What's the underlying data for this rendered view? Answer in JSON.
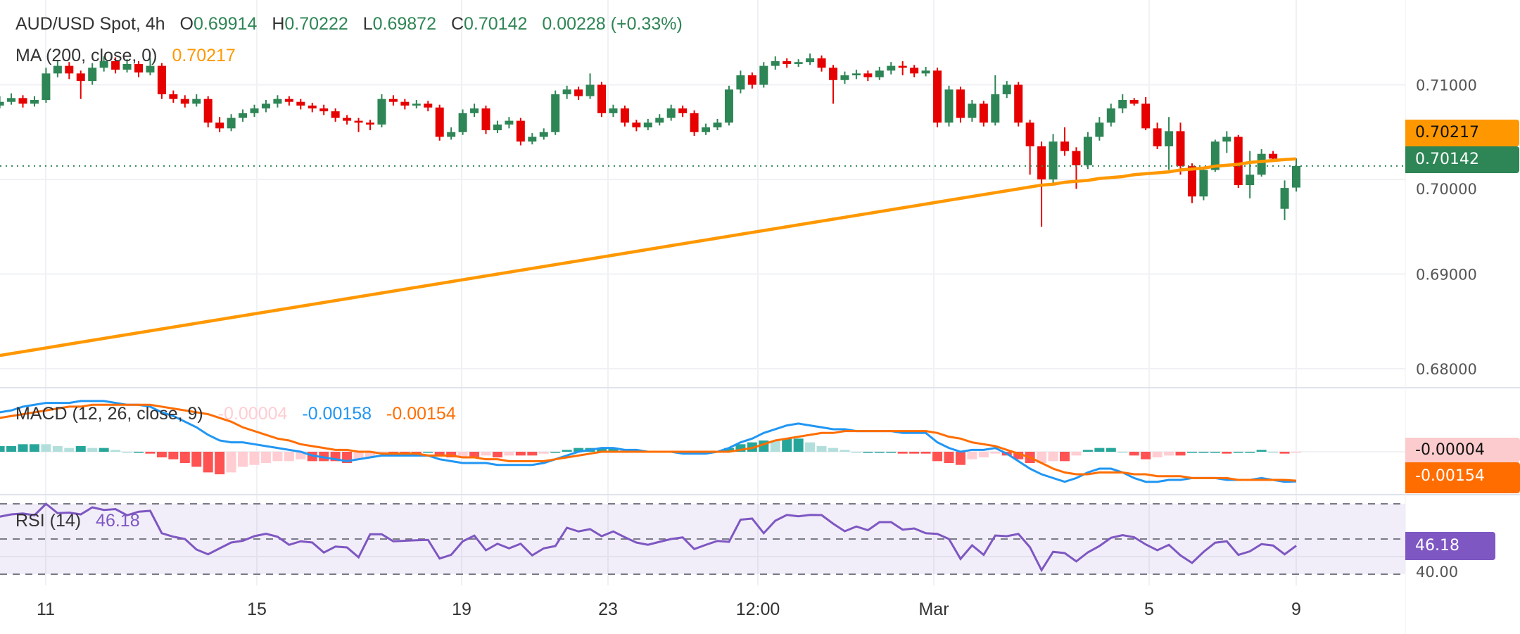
{
  "header": {
    "symbol": "AUD/USD Spot, 4h",
    "o_label": "O",
    "o_value": "0.69914",
    "h_label": "H",
    "h_value": "0.70222",
    "l_label": "L",
    "l_value": "0.69872",
    "c_label": "C",
    "c_value": "0.70142",
    "change": "0.00228 (+0.33%)",
    "ma_label": "MA (200, close, 0)",
    "ma_value": "0.70217"
  },
  "macd_legend": {
    "label": "MACD (12, 26, close, 9)",
    "hist_value": "-0.00004",
    "macd_value": "-0.00158",
    "signal_value": "-0.00154"
  },
  "rsi_legend": {
    "label": "RSI (14)",
    "value": "46.18"
  },
  "badges": {
    "ma": "0.70217",
    "last": "0.70142",
    "hist": "-0.00004",
    "signal": "-0.00154",
    "rsi": "46.18",
    "rsi_hidden_tick": "40.00"
  },
  "colors": {
    "up": "#2e8555",
    "down": "#e60000",
    "ma": "#ff9800",
    "macd": "#2196f3",
    "signal": "#ff6d00",
    "rsi": "#7e57c2",
    "hist_up_strong": "#26a69a",
    "hist_up_weak": "#b2dfdb",
    "hist_down_strong": "#ff5252",
    "hist_down_weak": "#ffcdd2"
  },
  "chart_data": [
    {
      "type": "candlestick",
      "title": "AUD/USD Spot, 4h",
      "price_ticks": [
        "0.68000",
        "0.69000",
        "0.70000",
        "0.71000"
      ],
      "ylim": [
        0.678,
        0.714
      ],
      "time_ticks": [
        "11",
        "15",
        "19",
        "23",
        "12:00",
        "Mar",
        "5",
        "9"
      ],
      "grid": true,
      "last_price": 0.70142,
      "candles": [
        [
          0.7078,
          0.7088,
          0.7075,
          0.7082
        ],
        [
          0.7082,
          0.7091,
          0.7079,
          0.7086
        ],
        [
          0.7086,
          0.7089,
          0.7076,
          0.708
        ],
        [
          0.708,
          0.7088,
          0.7077,
          0.7084
        ],
        [
          0.7084,
          0.7118,
          0.7081,
          0.7112
        ],
        [
          0.7112,
          0.7126,
          0.7108,
          0.712
        ],
        [
          0.712,
          0.7124,
          0.7106,
          0.7112
        ],
        [
          0.7112,
          0.7115,
          0.7085,
          0.7104
        ],
        [
          0.7104,
          0.7123,
          0.71,
          0.7118
        ],
        [
          0.7118,
          0.713,
          0.7114,
          0.7125
        ],
        [
          0.7125,
          0.7129,
          0.7112,
          0.7116
        ],
        [
          0.7116,
          0.7127,
          0.7113,
          0.7122
        ],
        [
          0.7122,
          0.7125,
          0.7108,
          0.7113
        ],
        [
          0.7113,
          0.7128,
          0.711,
          0.712
        ],
        [
          0.712,
          0.7123,
          0.7085,
          0.709
        ],
        [
          0.709,
          0.7094,
          0.7081,
          0.7085
        ],
        [
          0.7085,
          0.7089,
          0.7076,
          0.708
        ],
        [
          0.708,
          0.709,
          0.7077,
          0.7085
        ],
        [
          0.7085,
          0.7088,
          0.7055,
          0.706
        ],
        [
          0.706,
          0.7066,
          0.705,
          0.7054
        ],
        [
          0.7054,
          0.7069,
          0.7051,
          0.7065
        ],
        [
          0.7065,
          0.7074,
          0.7061,
          0.707
        ],
        [
          0.707,
          0.7079,
          0.7066,
          0.7075
        ],
        [
          0.7075,
          0.7084,
          0.7071,
          0.708
        ],
        [
          0.708,
          0.7089,
          0.7076,
          0.7085
        ],
        [
          0.7085,
          0.7088,
          0.7078,
          0.7082
        ],
        [
          0.7082,
          0.7085,
          0.7074,
          0.7078
        ],
        [
          0.7078,
          0.7081,
          0.7071,
          0.7075
        ],
        [
          0.7075,
          0.7079,
          0.7068,
          0.7072
        ],
        [
          0.7072,
          0.7075,
          0.7061,
          0.7065
        ],
        [
          0.7065,
          0.7068,
          0.7058,
          0.7062
        ],
        [
          0.7062,
          0.7065,
          0.705,
          0.706
        ],
        [
          0.706,
          0.7063,
          0.7052,
          0.7058
        ],
        [
          0.7058,
          0.709,
          0.7055,
          0.7085
        ],
        [
          0.7085,
          0.7089,
          0.7078,
          0.7082
        ],
        [
          0.7082,
          0.7085,
          0.7074,
          0.7078
        ],
        [
          0.7078,
          0.7084,
          0.7075,
          0.708
        ],
        [
          0.708,
          0.7083,
          0.7072,
          0.7076
        ],
        [
          0.7076,
          0.7079,
          0.7041,
          0.7045
        ],
        [
          0.7045,
          0.7055,
          0.7042,
          0.705
        ],
        [
          0.705,
          0.7074,
          0.7047,
          0.707
        ],
        [
          0.707,
          0.708,
          0.7066,
          0.7075
        ],
        [
          0.7075,
          0.7078,
          0.7048,
          0.7052
        ],
        [
          0.7052,
          0.7062,
          0.7049,
          0.7058
        ],
        [
          0.7058,
          0.7066,
          0.7054,
          0.7062
        ],
        [
          0.7062,
          0.7065,
          0.7036,
          0.704
        ],
        [
          0.704,
          0.7049,
          0.7037,
          0.7045
        ],
        [
          0.7045,
          0.7054,
          0.7042,
          0.705
        ],
        [
          0.705,
          0.7094,
          0.7047,
          0.709
        ],
        [
          0.709,
          0.7099,
          0.7085,
          0.7095
        ],
        [
          0.7095,
          0.7098,
          0.7084,
          0.7088
        ],
        [
          0.7088,
          0.7112,
          0.7085,
          0.71
        ],
        [
          0.71,
          0.7103,
          0.7066,
          0.707
        ],
        [
          0.707,
          0.7079,
          0.7066,
          0.7075
        ],
        [
          0.7075,
          0.7078,
          0.7056,
          0.706
        ],
        [
          0.706,
          0.7063,
          0.7051,
          0.7055
        ],
        [
          0.7055,
          0.7064,
          0.7052,
          0.706
        ],
        [
          0.706,
          0.7069,
          0.7057,
          0.7065
        ],
        [
          0.7065,
          0.7079,
          0.7062,
          0.7075
        ],
        [
          0.7075,
          0.7078,
          0.7066,
          0.707
        ],
        [
          0.707,
          0.7073,
          0.7046,
          0.705
        ],
        [
          0.705,
          0.7059,
          0.7047,
          0.7055
        ],
        [
          0.7055,
          0.7064,
          0.7052,
          0.706
        ],
        [
          0.706,
          0.7099,
          0.7057,
          0.7095
        ],
        [
          0.7095,
          0.7115,
          0.7091,
          0.711
        ],
        [
          0.711,
          0.7113,
          0.7096,
          0.71
        ],
        [
          0.71,
          0.7124,
          0.7097,
          0.712
        ],
        [
          0.712,
          0.713,
          0.7116,
          0.7125
        ],
        [
          0.7125,
          0.7128,
          0.7118,
          0.7122
        ],
        [
          0.7122,
          0.7127,
          0.7119,
          0.7124
        ],
        [
          0.7124,
          0.7133,
          0.7121,
          0.7128
        ],
        [
          0.7128,
          0.7131,
          0.7114,
          0.7118
        ],
        [
          0.7118,
          0.7121,
          0.708,
          0.7105
        ],
        [
          0.7105,
          0.7114,
          0.7101,
          0.711
        ],
        [
          0.711,
          0.7116,
          0.7106,
          0.7112
        ],
        [
          0.7112,
          0.7115,
          0.7104,
          0.7108
        ],
        [
          0.7108,
          0.7119,
          0.7105,
          0.7115
        ],
        [
          0.7115,
          0.7124,
          0.7111,
          0.712
        ],
        [
          0.712,
          0.7125,
          0.711,
          0.7118
        ],
        [
          0.7118,
          0.7121,
          0.7108,
          0.7112
        ],
        [
          0.7112,
          0.7119,
          0.7109,
          0.7115
        ],
        [
          0.7115,
          0.7118,
          0.7055,
          0.706
        ],
        [
          0.706,
          0.7099,
          0.7056,
          0.7095
        ],
        [
          0.7095,
          0.7098,
          0.706,
          0.7065
        ],
        [
          0.7065,
          0.7084,
          0.7061,
          0.708
        ],
        [
          0.708,
          0.7083,
          0.7056,
          0.706
        ],
        [
          0.706,
          0.711,
          0.7057,
          0.709
        ],
        [
          0.709,
          0.7104,
          0.7086,
          0.71
        ],
        [
          0.71,
          0.7103,
          0.7056,
          0.706
        ],
        [
          0.706,
          0.7063,
          0.7005,
          0.7035
        ],
        [
          0.7035,
          0.704,
          0.695,
          0.7
        ],
        [
          0.7,
          0.7048,
          0.6996,
          0.704
        ],
        [
          0.704,
          0.7055,
          0.7025,
          0.703
        ],
        [
          0.703,
          0.7034,
          0.699,
          0.7015
        ],
        [
          0.7015,
          0.705,
          0.7011,
          0.7045
        ],
        [
          0.7045,
          0.7066,
          0.7041,
          0.706
        ],
        [
          0.706,
          0.708,
          0.7056,
          0.7075
        ],
        [
          0.7075,
          0.709,
          0.707,
          0.7084
        ],
        [
          0.7084,
          0.7086,
          0.7078,
          0.708
        ],
        [
          0.708,
          0.7087,
          0.7052,
          0.7054
        ],
        [
          0.7054,
          0.706,
          0.7032,
          0.7035
        ],
        [
          0.7035,
          0.7066,
          0.701,
          0.7051
        ],
        [
          0.7051,
          0.706,
          0.7005,
          0.7014
        ],
        [
          0.7014,
          0.7017,
          0.6975,
          0.6982
        ],
        [
          0.6982,
          0.7011,
          0.6978,
          0.701
        ],
        [
          0.701,
          0.7042,
          0.7008,
          0.704
        ],
        [
          0.704,
          0.7051,
          0.7028,
          0.7045
        ],
        [
          0.7045,
          0.7047,
          0.6991,
          0.6994
        ],
        [
          0.6994,
          0.703,
          0.698,
          0.7005
        ],
        [
          0.7005,
          0.7032,
          0.7003,
          0.7027
        ],
        [
          0.7027,
          0.703,
          0.7019,
          0.7022
        ],
        [
          0.6969,
          0.6999,
          0.6957,
          0.6991
        ],
        [
          0.69914,
          0.70222,
          0.69872,
          0.70142
        ]
      ],
      "ma200": [
        0.6814,
        0.6816,
        0.6818,
        0.682,
        0.6822,
        0.6824,
        0.6826,
        0.6828,
        0.683,
        0.6832,
        0.6834,
        0.6836,
        0.6838,
        0.684,
        0.6842,
        0.6844,
        0.6846,
        0.6848,
        0.685,
        0.6852,
        0.6854,
        0.6856,
        0.6858,
        0.686,
        0.6862,
        0.6864,
        0.6866,
        0.6868,
        0.687,
        0.6872,
        0.6874,
        0.6876,
        0.6878,
        0.688,
        0.6882,
        0.6884,
        0.6886,
        0.6888,
        0.689,
        0.6892,
        0.6894,
        0.6896,
        0.6898,
        0.69,
        0.6902,
        0.6904,
        0.6906,
        0.6908,
        0.691,
        0.6912,
        0.6914,
        0.6916,
        0.6918,
        0.692,
        0.6922,
        0.6924,
        0.6926,
        0.6928,
        0.693,
        0.6932,
        0.6934,
        0.6936,
        0.6938,
        0.694,
        0.6942,
        0.6944,
        0.6946,
        0.6948,
        0.695,
        0.6952,
        0.6954,
        0.6956,
        0.6958,
        0.696,
        0.6962,
        0.6964,
        0.6966,
        0.6968,
        0.697,
        0.6972,
        0.6974,
        0.6976,
        0.6978,
        0.698,
        0.6982,
        0.6984,
        0.6986,
        0.6988,
        0.699,
        0.6992,
        0.6994,
        0.6995,
        0.6997,
        0.6998,
        0.6999,
        0.7001,
        0.7002,
        0.7003,
        0.7005,
        0.7006,
        0.7007,
        0.7008,
        0.701,
        0.7011,
        0.7012,
        0.7014,
        0.7015,
        0.7016,
        0.7018,
        0.7019,
        0.702,
        0.7021,
        0.70217
      ]
    },
    {
      "type": "line",
      "title": "MACD (12, 26, close, 9)",
      "macd": [
        0.0021,
        0.0022,
        0.0024,
        0.0025,
        0.0026,
        0.0026,
        0.0026,
        0.0027,
        0.0027,
        0.0027,
        0.0026,
        0.0025,
        0.0025,
        0.0024,
        0.0021,
        0.0019,
        0.0016,
        0.0013,
        0.0009,
        0.0006,
        0.0005,
        0.0005,
        0.0004,
        0.0003,
        0.0002,
        0.0001,
        0.0,
        -0.0002,
        -0.0003,
        -0.0004,
        -0.0005,
        -0.0004,
        -0.0003,
        -0.0002,
        -0.0002,
        -0.0002,
        -0.0002,
        -0.0002,
        -0.0004,
        -0.0005,
        -0.0006,
        -0.0006,
        -0.0006,
        -0.0007,
        -0.0007,
        -0.0007,
        -0.0007,
        -0.0006,
        -0.0004,
        -0.0002,
        0.0,
        0.0001,
        0.0002,
        0.0002,
        0.0001,
        0.0001,
        0.0,
        0.0,
        0.0,
        -0.0001,
        -0.0001,
        -0.0001,
        0.0,
        0.0002,
        0.0005,
        0.0007,
        0.001,
        0.0012,
        0.0014,
        0.0015,
        0.0014,
        0.0013,
        0.0012,
        0.0012,
        0.0011,
        0.0011,
        0.0011,
        0.0011,
        0.001,
        0.001,
        0.001,
        0.0005,
        0.0002,
        0.0,
        0.0001,
        0.0001,
        0.0002,
        -0.0001,
        -0.0005,
        -0.0009,
        -0.0012,
        -0.0014,
        -0.0016,
        -0.0014,
        -0.0011,
        -0.0009,
        -0.0009,
        -0.0011,
        -0.0014,
        -0.0016,
        -0.0016,
        -0.0015,
        -0.0015,
        -0.0014,
        -0.0014,
        -0.0014,
        -0.0015,
        -0.0015,
        -0.0015,
        -0.0014,
        -0.0015,
        -0.0016,
        -0.00158
      ],
      "signal": [
        0.0018,
        0.0019,
        0.002,
        0.0021,
        0.0022,
        0.0023,
        0.0024,
        0.0024,
        0.0025,
        0.0025,
        0.0025,
        0.0025,
        0.0025,
        0.0025,
        0.0024,
        0.0023,
        0.0022,
        0.0021,
        0.002,
        0.0018,
        0.0016,
        0.0013,
        0.0011,
        0.0009,
        0.0007,
        0.0006,
        0.0004,
        0.0003,
        0.0002,
        0.0001,
        0.0001,
        0.0,
        0.0,
        -0.0001,
        -0.0001,
        -0.0001,
        -0.0001,
        -0.0002,
        -0.0002,
        -0.0002,
        -0.0003,
        -0.0003,
        -0.0004,
        -0.0004,
        -0.0005,
        -0.0005,
        -0.0005,
        -0.0005,
        -0.0004,
        -0.0003,
        -0.0002,
        -0.0001,
        0.0,
        0.0,
        0.0,
        0.0,
        0.0,
        0.0,
        0.0,
        0.0,
        0.0,
        0.0,
        0.0,
        0.0,
        0.0001,
        0.0002,
        0.0004,
        0.0006,
        0.0007,
        0.0008,
        0.0009,
        0.001,
        0.001,
        0.0011,
        0.0011,
        0.0011,
        0.0011,
        0.0011,
        0.0011,
        0.0011,
        0.0011,
        0.001,
        0.0008,
        0.0007,
        0.0005,
        0.0004,
        0.0003,
        0.0001,
        -0.0001,
        -0.0003,
        -0.0006,
        -0.0009,
        -0.0011,
        -0.0012,
        -0.0012,
        -0.0011,
        -0.0011,
        -0.0011,
        -0.0012,
        -0.0012,
        -0.0013,
        -0.0013,
        -0.0013,
        -0.0014,
        -0.0014,
        -0.0014,
        -0.0014,
        -0.0015,
        -0.0015,
        -0.0015,
        -0.0015,
        -0.0015,
        -0.00154
      ],
      "histogram": "macd minus signal"
    },
    {
      "type": "line",
      "title": "RSI (14)",
      "levels": [
        70,
        50,
        30
      ],
      "ylim": [
        0,
        100
      ],
      "rsi": [
        62.7,
        64,
        64.5,
        63.5,
        70,
        64.7,
        65,
        64,
        68,
        66.5,
        67,
        63.5,
        65.5,
        66,
        53.3,
        51.3,
        50,
        44,
        41.3,
        44.7,
        48,
        49,
        51.6,
        53,
        51.3,
        46.7,
        48.7,
        48,
        42.3,
        45.7,
        45.2,
        39.6,
        52.7,
        52.7,
        48.7,
        49,
        49.3,
        49.5,
        38.9,
        41,
        48.7,
        51.9,
        43.6,
        47.3,
        44.7,
        47.3,
        40.7,
        44.7,
        46,
        56.4,
        54.3,
        55.6,
        51.6,
        54.3,
        51,
        48,
        46.7,
        48.4,
        50,
        50.9,
        44.3,
        46.7,
        48.9,
        48.4,
        61,
        61.6,
        53.3,
        60.4,
        63.7,
        62.9,
        63.7,
        63.6,
        58.7,
        54.4,
        57.1,
        55,
        59.6,
        59.6,
        55.3,
        56,
        53.3,
        52.9,
        50,
        38.7,
        46.4,
        41,
        52,
        51.6,
        52.9,
        45.3,
        32.3,
        42.7,
        42,
        37.3,
        42.4,
        46,
        50.7,
        52.2,
        51,
        46.9,
        43.6,
        46.7,
        40.7,
        36.4,
        42.7,
        47.9,
        48.7,
        41,
        43,
        47.1,
        46.3,
        41.3,
        46.18
      ]
    }
  ]
}
